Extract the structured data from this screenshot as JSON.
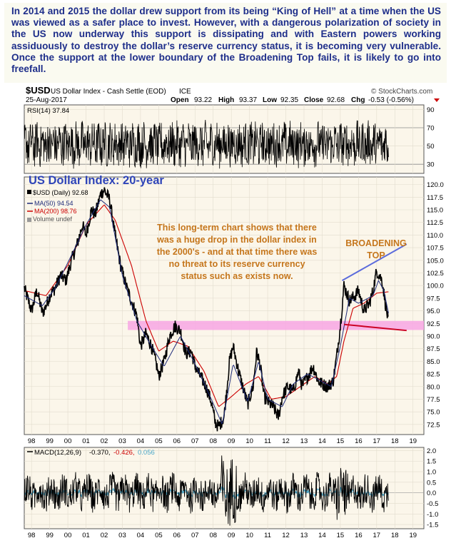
{
  "intro_text": "In 2014 and 2015 the dollar drew support from its being “King of Hell” at a time when the US was viewed as a safer place to invest. However, with a dangerous polarization of society in the US now underway this support is dissipating and with Eastern powers working assiduously to destroy the dollar’s reserve currency status, it is becoming very vulnerable. Once the support at the lower boundary of the Broadening Top fails, it is likely to go into freefall.",
  "colors": {
    "intro_text": "#1e2e8a",
    "chart_bg": "#fbf6ea",
    "price": "#000000",
    "ma50": "#1f2c7a",
    "ma200": "#cc0000",
    "support_band": "#f7a6e4",
    "annotation": "#c5761c",
    "title_blue": "#2e44b8",
    "trend_line": "#5b6bdc",
    "support_line": "#cc0022",
    "macd_signal": "#4aa7c9"
  },
  "header": {
    "symbol": "$USD",
    "name": "US Dollar Index - Cash Settle (EOD)",
    "exchange": "ICE",
    "date": "25-Aug-2017",
    "source": "© StockCharts.com",
    "open_label": "Open",
    "open": "93.22",
    "high_label": "High",
    "high": "93.37",
    "low_label": "Low",
    "low": "92.35",
    "close_label": "Close",
    "close": "92.68",
    "chg_label": "Chg",
    "chg": "-0.53 (-0.56%)"
  },
  "chart_data": [
    {
      "panel": "rsi",
      "type": "line",
      "label": "RSI(14) 37.84",
      "indicator": "RSI(14)",
      "last_value": 37.84,
      "ylim": [
        20,
        95
      ],
      "yticks": [
        30,
        50,
        70,
        90
      ],
      "reference_lines": [
        30,
        70
      ],
      "x_range": [
        1997.6,
        2019.6
      ]
    },
    {
      "panel": "price",
      "type": "line",
      "series": [
        {
          "name": "$USD (Daily)",
          "last_value": 92.68,
          "x": [
            1997.6,
            1998.0,
            1998.3,
            1998.6,
            1998.8,
            1999.0,
            1999.3,
            1999.6,
            1999.9,
            2000.2,
            2000.5,
            2000.8,
            2001.0,
            2001.3,
            2001.5,
            2001.8,
            2002.0,
            2002.3,
            2002.6,
            2002.9,
            2003.2,
            2003.5,
            2003.8,
            2004.0,
            2004.3,
            2004.6,
            2004.9,
            2005.0,
            2005.3,
            2005.6,
            2005.9,
            2006.2,
            2006.5,
            2006.8,
            2007.0,
            2007.3,
            2007.6,
            2007.9,
            2008.1,
            2008.3,
            2008.6,
            2008.9,
            2009.1,
            2009.4,
            2009.7,
            2009.9,
            2010.2,
            2010.4,
            2010.6,
            2010.8,
            2011.0,
            2011.3,
            2011.6,
            2011.8,
            2012.1,
            2012.4,
            2012.7,
            2012.9,
            2013.2,
            2013.5,
            2013.8,
            2014.0,
            2014.3,
            2014.6,
            2014.8,
            2015.0,
            2015.2,
            2015.5,
            2015.8,
            2016.0,
            2016.3,
            2016.6,
            2016.8,
            2017.0,
            2017.3,
            2017.5,
            2017.65
          ],
          "values": [
            99.5,
            95.0,
            99.0,
            94.5,
            96.0,
            98.0,
            99.5,
            102.0,
            101.0,
            105.0,
            108.0,
            112.0,
            110.0,
            115.0,
            114.0,
            118.0,
            119.0,
            117.0,
            110.0,
            104.0,
            100.0,
            97.0,
            94.0,
            88.0,
            90.5,
            88.0,
            84.0,
            82.0,
            85.0,
            90.0,
            92.0,
            91.0,
            86.5,
            87.0,
            84.0,
            82.0,
            80.0,
            77.0,
            73.0,
            72.0,
            74.0,
            85.0,
            88.0,
            83.0,
            79.0,
            76.5,
            80.0,
            87.0,
            84.0,
            78.0,
            77.0,
            76.0,
            74.0,
            78.0,
            80.0,
            79.0,
            83.0,
            80.0,
            82.0,
            84.0,
            81.0,
            80.5,
            80.0,
            81.0,
            86.0,
            92.0,
            100.0,
            97.0,
            98.0,
            99.0,
            95.0,
            96.5,
            99.0,
            103.0,
            101.0,
            96.0,
            92.68
          ]
        },
        {
          "name": "MA(50) 94.54",
          "last_value": 94.54,
          "x": [
            1997.6,
            1998.6,
            1999.3,
            2000.2,
            2001.0,
            2001.8,
            2002.3,
            2003.0,
            2003.8,
            2004.6,
            2005.3,
            2006.2,
            2007.0,
            2007.9,
            2008.5,
            2009.1,
            2009.9,
            2010.5,
            2011.0,
            2011.8,
            2012.4,
            2013.2,
            2014.0,
            2014.5,
            2015.0,
            2015.5,
            2016.0,
            2016.8,
            2017.1,
            2017.4,
            2017.65
          ],
          "values": [
            98.0,
            96.0,
            99.5,
            106.0,
            112.0,
            117.0,
            115.5,
            102.0,
            93.0,
            88.0,
            84.0,
            90.0,
            84.5,
            77.5,
            72.5,
            84.5,
            77.0,
            85.0,
            77.5,
            76.0,
            80.5,
            82.5,
            81.0,
            80.0,
            88.0,
            97.5,
            96.5,
            98.0,
            101.0,
            99.0,
            94.54
          ]
        },
        {
          "name": "MA(200) 98.76",
          "last_value": 98.76,
          "x": [
            1997.6,
            1998.8,
            2000.0,
            2001.0,
            2002.0,
            2002.6,
            2003.5,
            2004.3,
            2005.0,
            2005.8,
            2006.6,
            2007.5,
            2008.3,
            2009.0,
            2009.8,
            2010.5,
            2011.2,
            2012.0,
            2012.8,
            2013.6,
            2014.3,
            2014.8,
            2015.2,
            2015.7,
            2016.3,
            2017.0,
            2017.65
          ],
          "values": [
            99.0,
            98.0,
            104.0,
            112.0,
            116.0,
            113.0,
            104.0,
            93.0,
            87.0,
            89.0,
            88.0,
            83.0,
            76.0,
            78.0,
            80.5,
            82.0,
            77.5,
            78.0,
            80.0,
            82.0,
            80.5,
            82.0,
            89.0,
            95.5,
            96.5,
            98.5,
            98.76
          ]
        },
        {
          "name": "Volume undef",
          "values": []
        }
      ],
      "ylim": [
        70.5,
        121.5
      ],
      "yticks": [
        72.5,
        75.0,
        77.5,
        80.0,
        82.5,
        85.0,
        87.5,
        90.0,
        92.5,
        95.0,
        97.5,
        100.0,
        102.5,
        105.0,
        107.5,
        110.0,
        112.5,
        115.0,
        117.5,
        120.0
      ],
      "x_range": [
        1997.6,
        2019.6
      ],
      "xtick_labels": [
        "98",
        "99",
        "00",
        "01",
        "02",
        "03",
        "04",
        "05",
        "06",
        "07",
        "08",
        "09",
        "10",
        "11",
        "12",
        "13",
        "14",
        "15",
        "16",
        "17",
        "18",
        "19"
      ],
      "xtick_values": [
        1998,
        1999,
        2000,
        2001,
        2002,
        2003,
        2004,
        2005,
        2006,
        2007,
        2008,
        2009,
        2010,
        2011,
        2012,
        2013,
        2014,
        2015,
        2016,
        2017,
        2018,
        2019
      ],
      "support_band": {
        "x": [
          2003.3,
          2019.6
        ],
        "y": [
          91.2,
          93.0
        ]
      },
      "upper_trendline": {
        "x": [
          2015.1,
          2018.65
        ],
        "y": [
          101.0,
          108.2
        ]
      },
      "lower_trendline": {
        "x": [
          2015.2,
          2018.65
        ],
        "y": [
          92.3,
          91.1
        ]
      },
      "chart_title": "US Dollar Index: 20-year",
      "annotations": [
        {
          "text": "This long-term chart shows that there was a huge drop in the dollar index in the 2000's - and at that time there was no threat to its reserve currency status such as exists now."
        },
        {
          "text": "BROADENING TOP"
        }
      ]
    },
    {
      "panel": "macd",
      "type": "line",
      "label": "MACD(12,26,9)",
      "values": [
        -0.37,
        -0.426,
        0.056
      ],
      "ylim": [
        -1.7,
        2.15
      ],
      "yticks": [
        -1.5,
        -1.0,
        -0.5,
        0.0,
        0.5,
        1.0,
        1.5,
        2.0
      ],
      "x_range": [
        1997.6,
        2019.6
      ]
    }
  ],
  "texts": {
    "macd_label": "MACD(12,26,9)",
    "macd_v1": "-0.370,",
    "macd_v2": "-0.426,",
    "macd_v3": "0.056",
    "rsi_label": "RSI(14) 37.84",
    "legend_price": "$USD (Daily) 92.68",
    "legend_ma50": "MA(50) 94.54",
    "legend_ma200": "MA(200) 98.76",
    "legend_volume": "Volume undef",
    "chart_title": "US Dollar Index: 20-year",
    "annotation_lines": [
      "This long-term chart shows that there",
      "was a huge drop in the dollar index in",
      "the 2000's - and at that time there was",
      "no threat to its reserve currency",
      "status such as exists now."
    ],
    "broadening_lines": [
      "BROADENING",
      "TOP"
    ]
  }
}
